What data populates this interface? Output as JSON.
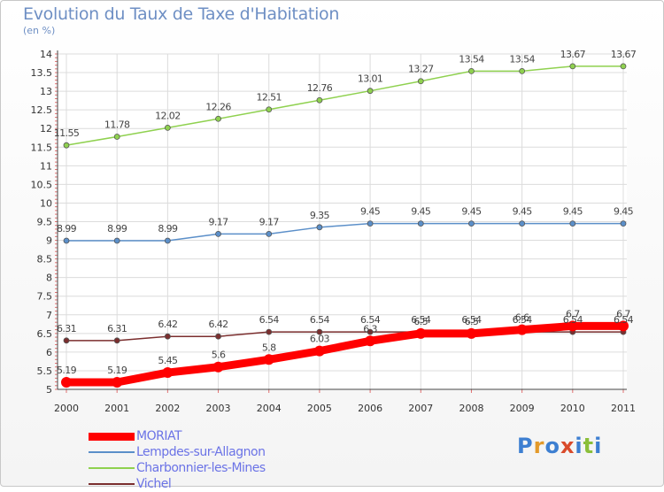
{
  "title": "Evolution du Taux de Taxe d'Habitation",
  "subtitle": "(en %)",
  "logo": {
    "text": "Proxiti",
    "colors": [
      "#3d7fd1",
      "#e39a2a",
      "#3d7fd1",
      "#d94b2b",
      "#3d7fd1",
      "#8bbf3a",
      "#3d7fd1"
    ]
  },
  "chart_data": {
    "type": "line",
    "x": [
      "2000",
      "2001",
      "2002",
      "2003",
      "2004",
      "2005",
      "2006",
      "2007",
      "2008",
      "2009",
      "2010",
      "2011"
    ],
    "ylim": [
      5,
      14
    ],
    "yticks": [
      "5",
      "5.5",
      "6",
      "6.5",
      "7",
      "7.5",
      "8",
      "8.5",
      "9",
      "9.5",
      "10",
      "10.5",
      "11",
      "11.5",
      "12",
      "12.5",
      "13",
      "13.5",
      "14"
    ],
    "grid": true,
    "legend_position": "bottom-left",
    "series": [
      {
        "name": "MORIAT",
        "color": "#ff0000",
        "values": [
          5.19,
          5.19,
          5.45,
          5.6,
          5.8,
          6.03,
          6.3,
          6.5,
          6.5,
          6.6,
          6.7,
          6.7
        ],
        "labels": [
          "5.19",
          "5.19",
          "5.45",
          "5.6",
          "5.8",
          "6.03",
          "6.3",
          "6.5",
          "6.5",
          "6.6",
          "6.7",
          "6.7"
        ]
      },
      {
        "name": "Lempdes-sur-Allagnon",
        "color": "#5b8fc9",
        "values": [
          8.99,
          8.99,
          8.99,
          9.17,
          9.17,
          9.35,
          9.45,
          9.45,
          9.45,
          9.45,
          9.45,
          9.45
        ],
        "labels": [
          "8.99",
          "8.99",
          "8.99",
          "9.17",
          "9.17",
          "9.35",
          "9.45",
          "9.45",
          "9.45",
          "9.45",
          "9.45",
          "9.45"
        ]
      },
      {
        "name": "Charbonnier-les-Mines",
        "color": "#8fd14f",
        "values": [
          11.55,
          11.78,
          12.02,
          12.26,
          12.51,
          12.76,
          13.01,
          13.27,
          13.54,
          13.54,
          13.67,
          13.67
        ],
        "labels": [
          "11.55",
          "11.78",
          "12.02",
          "12.26",
          "12.51",
          "12.76",
          "13.01",
          "13.27",
          "13.54",
          "13.54",
          "13.67",
          "13.67"
        ]
      },
      {
        "name": "Vichel",
        "color": "#7b2e2e",
        "values": [
          6.31,
          6.31,
          6.42,
          6.42,
          6.54,
          6.54,
          6.54,
          6.54,
          6.54,
          6.54,
          6.54,
          6.54
        ],
        "labels": [
          "6.31",
          "6.31",
          "6.42",
          "6.42",
          "6.54",
          "6.54",
          "6.54",
          "6.54",
          "6.54",
          "6.54",
          "6.54",
          "6.54"
        ]
      }
    ]
  }
}
